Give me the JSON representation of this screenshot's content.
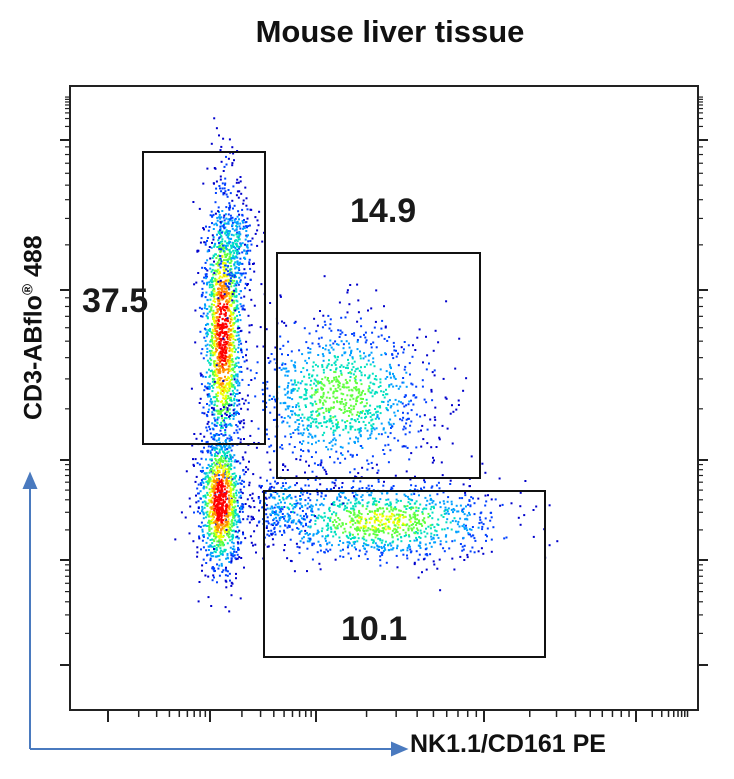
{
  "chart_data": {
    "type": "scatter",
    "title": "Mouse liver tissue",
    "xlabel": "NK1.1/CD161 PE",
    "ylabel_main": "CD3-ABflo",
    "ylabel_sup": "®",
    "ylabel_suffix": " 488",
    "gates": [
      {
        "label": "37.5"
      },
      {
        "label": "14.9"
      },
      {
        "label": "10.1"
      }
    ],
    "colors": {
      "axis_arrow": "#4a7abf",
      "density": [
        "#0000cc",
        "#0040ff",
        "#00a0ff",
        "#00e0c0",
        "#60ff40",
        "#f0ff00",
        "#ff9000",
        "#ff0000"
      ]
    }
  }
}
